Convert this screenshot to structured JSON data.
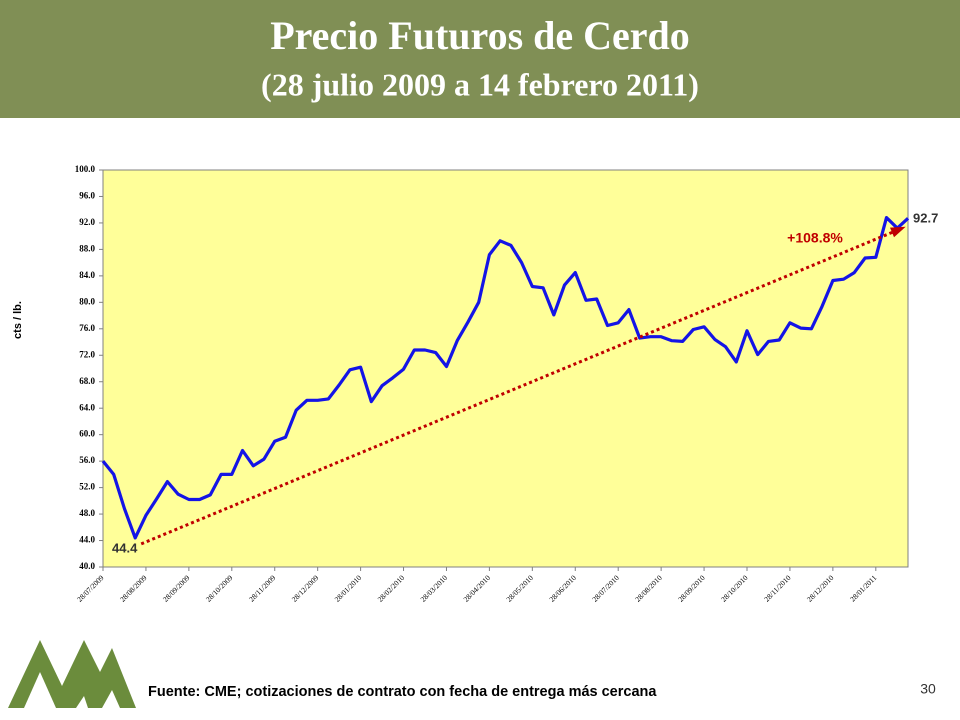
{
  "chart_data": {
    "type": "line",
    "title": "Precio Futuros de Cerdo",
    "subtitle": "(28 julio 2009 a 14 febrero 2011)",
    "y_label": "cts / lb.",
    "categories": [
      "28/07/2009",
      null,
      null,
      null,
      "28/08/2009",
      null,
      null,
      null,
      "28/09/2009",
      null,
      null,
      null,
      "28/10/2009",
      null,
      null,
      null,
      "28/11/2009",
      null,
      null,
      null,
      "28/12/2009",
      null,
      null,
      null,
      "28/01/2010",
      null,
      null,
      null,
      "28/02/2010",
      null,
      null,
      null,
      "28/03/2010",
      null,
      null,
      null,
      "28/04/2010",
      null,
      null,
      null,
      "28/05/2010",
      null,
      null,
      null,
      "28/06/2010",
      null,
      null,
      null,
      "28/07/2010",
      null,
      null,
      null,
      "28/08/2010",
      null,
      null,
      null,
      "28/09/2010",
      null,
      null,
      null,
      "28/10/2010",
      null,
      null,
      null,
      "28/11/2010",
      null,
      null,
      null,
      "28/12/2010",
      null,
      null,
      null,
      "28/01/2011",
      null,
      null,
      null
    ],
    "series": [
      {
        "color": "#1414e6",
        "values": [
          56.0,
          54.0,
          48.8,
          44.4,
          47.8,
          50.3,
          52.9,
          51.0,
          50.2,
          50.2,
          50.9,
          54.0,
          54.0,
          57.6,
          55.3,
          56.3,
          59.0,
          59.6,
          63.7,
          65.2,
          65.2,
          65.4,
          67.5,
          69.8,
          70.2,
          65.0,
          67.4,
          68.6,
          69.9,
          72.8,
          72.8,
          72.4,
          70.3,
          74.2,
          77.0,
          80.0,
          87.2,
          89.3,
          88.6,
          86.0,
          82.4,
          82.2,
          78.1,
          82.6,
          84.5,
          80.3,
          80.5,
          76.5,
          76.9,
          78.9,
          74.6,
          74.8,
          74.8,
          74.2,
          74.1,
          75.9,
          76.3,
          74.4,
          73.3,
          71.0,
          75.7,
          72.1,
          74.1,
          74.3,
          76.9,
          76.1,
          76.0,
          79.4,
          83.3,
          83.5,
          84.5,
          86.7,
          86.8,
          92.8,
          91.2,
          92.7
        ]
      }
    ],
    "ylim": [
      40,
      100
    ],
    "yticks": [
      {
        "value": 40,
        "label": "40.0"
      },
      {
        "value": 44,
        "label": "44.0"
      },
      {
        "value": 48,
        "label": "48.0"
      },
      {
        "value": 52,
        "label": "52.0"
      },
      {
        "value": 56,
        "label": "56.0"
      },
      {
        "value": 60,
        "label": "60.0"
      },
      {
        "value": 64,
        "label": "64.0"
      },
      {
        "value": 68,
        "label": "68.0"
      },
      {
        "value": 72,
        "label": "72.0"
      },
      {
        "value": 76,
        "label": "76.0"
      },
      {
        "value": 80,
        "label": "80.0"
      },
      {
        "value": 84,
        "label": "84.0"
      },
      {
        "value": 88,
        "label": "88.0"
      },
      {
        "value": 92,
        "label": "92.0"
      },
      {
        "value": 96,
        "label": "96.0"
      },
      {
        "value": 100,
        "label": "100.0"
      }
    ],
    "grid": false,
    "start_label": "44.4",
    "end_label": "92.7",
    "change_label": "+108.8%",
    "trend_color": "#c00000",
    "source": "Fuente: CME; cotizaciones de contrato con fecha de entrega más cercana",
    "page_number": "30"
  }
}
